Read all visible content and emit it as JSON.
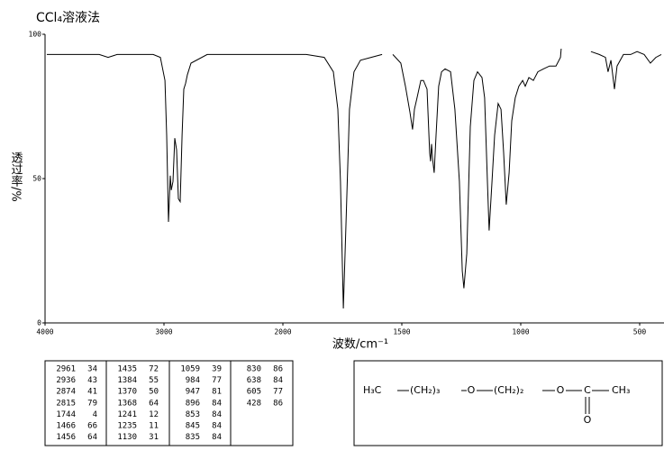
{
  "chart_data": {
    "type": "line",
    "title": "CCl₄溶液法",
    "x_label": "波数/cm⁻¹",
    "y_label": "透过率/%",
    "xlim": [
      4000,
      400
    ],
    "xticks": [
      4000,
      3000,
      2000,
      1500,
      1000,
      500
    ],
    "ylim": [
      0,
      100
    ],
    "yticks": [
      0,
      50,
      100
    ],
    "color": "#000000",
    "x": [
      3985,
      3545,
      3470,
      3394,
      3091,
      3030,
      2992,
      2977,
      2962,
      2947,
      2939,
      2924,
      2909,
      2894,
      2879,
      2864,
      2848,
      2833,
      2818,
      2803,
      2773,
      2636,
      2409,
      2106,
      1902,
      1826,
      1788,
      1769,
      1758,
      1746,
      1735,
      1720,
      1701,
      1674,
      1629,
      1583,
      null,
      1538,
      1504,
      1485,
      1466,
      1455,
      1447,
      1436,
      1420,
      1409,
      1394,
      1383,
      1379,
      1375,
      1371,
      1364,
      1356,
      1345,
      1333,
      1318,
      1295,
      1277,
      1258,
      1246,
      1239,
      1227,
      1212,
      1197,
      1182,
      1163,
      1152,
      1140,
      1133,
      1121,
      1110,
      1095,
      1083,
      1072,
      1061,
      1049,
      1038,
      1023,
      1008,
      992,
      981,
      966,
      947,
      928,
      905,
      879,
      852,
      833,
      830,
      null,
      705,
      670,
      644,
      633,
      621,
      606,
      595,
      568,
      538,
      511,
      481,
      455,
      432,
      409
    ],
    "values": [
      93,
      93,
      92,
      93,
      93,
      92,
      84,
      65,
      35,
      51,
      46,
      49,
      64,
      60,
      43,
      42,
      65,
      81,
      83,
      86,
      90,
      93,
      93,
      93,
      93,
      92,
      87,
      74,
      49,
      5,
      34,
      74,
      87,
      91,
      92,
      93,
      null,
      93,
      90,
      82,
      73,
      67,
      74,
      78,
      84,
      84,
      81,
      59,
      56,
      62,
      57,
      52,
      65,
      82,
      87,
      88,
      87,
      74,
      49,
      18,
      12,
      24,
      68,
      84,
      87,
      85,
      78,
      49,
      32,
      49,
      65,
      76,
      74,
      59,
      41,
      52,
      70,
      78,
      82,
      84,
      82,
      85,
      84,
      87,
      88,
      89,
      89,
      92,
      95,
      null,
      94,
      93,
      92,
      87,
      91,
      81,
      89,
      93,
      93,
      94,
      93,
      90,
      92,
      93
    ],
    "peak_table": [
      [
        [
          2961,
          34
        ],
        [
          2936,
          43
        ],
        [
          2874,
          41
        ],
        [
          2815,
          79
        ],
        [
          1744,
          4
        ],
        [
          1466,
          66
        ],
        [
          1456,
          64
        ]
      ],
      [
        [
          1435,
          72
        ],
        [
          1384,
          55
        ],
        [
          1370,
          50
        ],
        [
          1368,
          64
        ],
        [
          1241,
          12
        ],
        [
          1235,
          11
        ],
        [
          1130,
          31
        ]
      ],
      [
        [
          1059,
          39
        ],
        [
          984,
          77
        ],
        [
          947,
          81
        ],
        [
          896,
          84
        ],
        [
          853,
          84
        ],
        [
          845,
          84
        ],
        [
          835,
          84
        ]
      ],
      [
        [
          830,
          86
        ],
        [
          638,
          84
        ],
        [
          605,
          77
        ],
        [
          428,
          86
        ]
      ]
    ],
    "structure": [
      "H₃C",
      "(CH₂)₃",
      "O",
      "(CH₂)₂",
      "O",
      "C",
      "CH₃",
      "O"
    ]
  }
}
